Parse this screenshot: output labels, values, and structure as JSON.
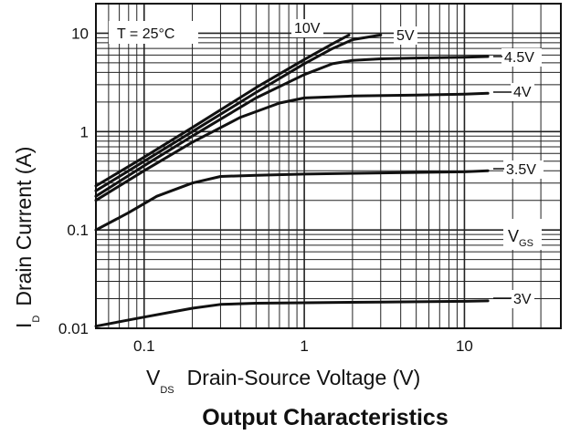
{
  "chart_data": {
    "type": "line",
    "title": "Output Characteristics",
    "annotation": "T = 25°C",
    "xlabel": {
      "main": "V",
      "sub": "DS",
      "text": "Drain-Source Voltage (V)"
    },
    "ylabel": {
      "main": "I",
      "sub": "D",
      "text": "Drain Current (A)"
    },
    "xscale": "log",
    "yscale": "log",
    "xlim": [
      0.05,
      40
    ],
    "ylim": [
      0.01,
      20
    ],
    "xticks": [
      {
        "v": 0.1,
        "label": "0.1"
      },
      {
        "v": 1,
        "label": "1"
      },
      {
        "v": 10,
        "label": "10"
      }
    ],
    "yticks": [
      {
        "v": 0.01,
        "label": "0.01"
      },
      {
        "v": 0.1,
        "label": "0.1"
      },
      {
        "v": 1,
        "label": "1"
      },
      {
        "v": 10,
        "label": "10"
      }
    ],
    "grid": true,
    "legend_title": {
      "main": "V",
      "sub": "GS"
    },
    "series": [
      {
        "name": "10V",
        "points": [
          [
            0.05,
            0.28
          ],
          [
            0.1,
            0.55
          ],
          [
            0.2,
            1.1
          ],
          [
            0.5,
            2.8
          ],
          [
            1,
            5.4
          ],
          [
            1.5,
            7.8
          ],
          [
            1.9,
            9.6
          ]
        ]
      },
      {
        "name": "5V",
        "points": [
          [
            0.05,
            0.25
          ],
          [
            0.1,
            0.5
          ],
          [
            0.2,
            1.0
          ],
          [
            0.5,
            2.5
          ],
          [
            1,
            4.9
          ],
          [
            1.5,
            7.0
          ],
          [
            2,
            8.6
          ],
          [
            3,
            9.6
          ]
        ]
      },
      {
        "name": "4.5V",
        "points": [
          [
            0.05,
            0.22
          ],
          [
            0.1,
            0.45
          ],
          [
            0.2,
            0.9
          ],
          [
            0.5,
            2.2
          ],
          [
            1,
            3.8
          ],
          [
            1.5,
            4.9
          ],
          [
            2,
            5.3
          ],
          [
            3,
            5.5
          ],
          [
            5,
            5.6
          ],
          [
            10,
            5.7
          ],
          [
            14,
            5.8
          ]
        ]
      },
      {
        "name": "4V",
        "points": [
          [
            0.05,
            0.2
          ],
          [
            0.1,
            0.4
          ],
          [
            0.2,
            0.78
          ],
          [
            0.4,
            1.4
          ],
          [
            0.7,
            1.95
          ],
          [
            1,
            2.2
          ],
          [
            2,
            2.3
          ],
          [
            5,
            2.35
          ],
          [
            10,
            2.4
          ],
          [
            14,
            2.45
          ]
        ]
      },
      {
        "name": "3.5V",
        "points": [
          [
            0.05,
            0.1
          ],
          [
            0.08,
            0.15
          ],
          [
            0.12,
            0.22
          ],
          [
            0.2,
            0.3
          ],
          [
            0.3,
            0.35
          ],
          [
            0.5,
            0.36
          ],
          [
            1,
            0.37
          ],
          [
            3,
            0.38
          ],
          [
            10,
            0.39
          ],
          [
            14,
            0.4
          ]
        ]
      },
      {
        "name": "3V",
        "points": [
          [
            0.05,
            0.0105
          ],
          [
            0.1,
            0.013
          ],
          [
            0.2,
            0.016
          ],
          [
            0.3,
            0.0175
          ],
          [
            0.5,
            0.018
          ],
          [
            1,
            0.0182
          ],
          [
            3,
            0.0185
          ],
          [
            10,
            0.0188
          ],
          [
            14,
            0.019
          ]
        ]
      }
    ]
  }
}
